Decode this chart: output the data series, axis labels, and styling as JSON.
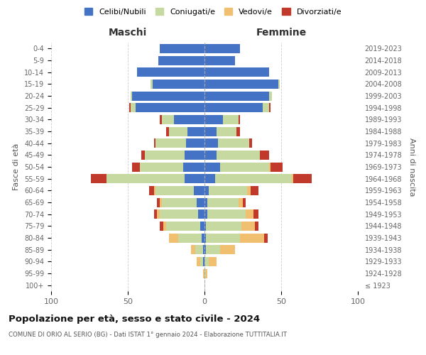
{
  "age_groups": [
    "100+",
    "95-99",
    "90-94",
    "85-89",
    "80-84",
    "75-79",
    "70-74",
    "65-69",
    "60-64",
    "55-59",
    "50-54",
    "45-49",
    "40-44",
    "35-39",
    "30-34",
    "25-29",
    "20-24",
    "15-19",
    "10-14",
    "5-9",
    "0-4"
  ],
  "birth_years": [
    "≤ 1923",
    "1924-1928",
    "1929-1933",
    "1934-1938",
    "1939-1943",
    "1944-1948",
    "1949-1953",
    "1954-1958",
    "1959-1963",
    "1964-1968",
    "1969-1973",
    "1974-1978",
    "1979-1983",
    "1984-1988",
    "1989-1993",
    "1994-1998",
    "1999-2003",
    "2004-2008",
    "2009-2013",
    "2014-2018",
    "2019-2023"
  ],
  "colors": {
    "celibe": "#4472c4",
    "coniugato": "#c5d9a0",
    "vedovo": "#f0c070",
    "divorziato": "#c0392b"
  },
  "maschi": {
    "celibe": [
      0,
      0,
      1,
      1,
      2,
      3,
      4,
      5,
      7,
      13,
      14,
      13,
      12,
      11,
      20,
      45,
      47,
      34,
      44,
      30,
      29
    ],
    "coniugato": [
      0,
      0,
      2,
      5,
      15,
      22,
      25,
      23,
      25,
      51,
      28,
      26,
      20,
      12,
      8,
      3,
      1,
      1,
      0,
      0,
      0
    ],
    "vedovo": [
      0,
      1,
      2,
      3,
      6,
      2,
      2,
      1,
      1,
      0,
      0,
      0,
      0,
      0,
      0,
      0,
      0,
      0,
      0,
      0,
      0
    ],
    "divorziato": [
      0,
      0,
      0,
      0,
      0,
      2,
      2,
      2,
      3,
      10,
      5,
      2,
      1,
      2,
      1,
      1,
      0,
      0,
      0,
      0,
      0
    ]
  },
  "femmine": {
    "nubile": [
      0,
      0,
      0,
      1,
      1,
      1,
      2,
      2,
      3,
      7,
      10,
      8,
      9,
      8,
      12,
      38,
      42,
      48,
      42,
      20,
      23
    ],
    "coniugata": [
      0,
      1,
      3,
      9,
      22,
      23,
      25,
      20,
      25,
      50,
      32,
      28,
      20,
      13,
      10,
      4,
      2,
      1,
      0,
      0,
      0
    ],
    "vedova": [
      0,
      1,
      5,
      10,
      16,
      9,
      5,
      3,
      2,
      1,
      1,
      0,
      0,
      0,
      0,
      0,
      0,
      0,
      0,
      0,
      0
    ],
    "divorziata": [
      0,
      0,
      0,
      0,
      2,
      2,
      3,
      2,
      5,
      12,
      8,
      6,
      2,
      2,
      1,
      1,
      0,
      0,
      0,
      0,
      0
    ]
  },
  "title": "Popolazione per età, sesso e stato civile - 2024",
  "subtitle": "COMUNE DI ORIO AL SERIO (BG) - Dati ISTAT 1° gennaio 2024 - Elaborazione TUTTITALIA.IT",
  "xlabel_left": "Maschi",
  "xlabel_right": "Femmine",
  "ylabel_left": "Fasce di età",
  "ylabel_right": "Anni di nascita",
  "xlim": 100,
  "legend_labels": [
    "Celibi/Nubili",
    "Coniugati/e",
    "Vedovi/e",
    "Divorziati/e"
  ],
  "bg_color": "#ffffff",
  "grid_color": "#cccccc"
}
